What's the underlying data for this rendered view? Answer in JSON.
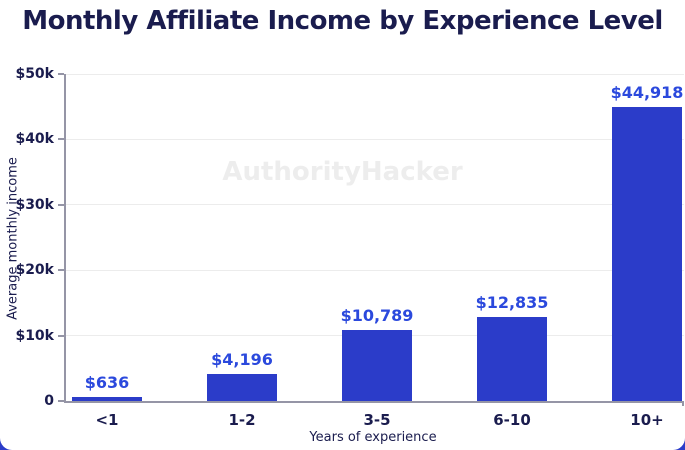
{
  "title": "Monthly Affiliate Income by Experience Level",
  "watermark": "AuthorityHacker",
  "chart_data": {
    "type": "bar",
    "title": "Monthly Affiliate Income by Experience Level",
    "categories": [
      "<1",
      "1-2",
      "3-5",
      "6-10",
      "10+"
    ],
    "values": [
      636,
      4196,
      10789,
      12835,
      44918
    ],
    "value_labels": [
      "$636",
      "$4,196",
      "$10,789",
      "$12,835",
      "$44,918"
    ],
    "xlabel": "Years of experience",
    "ylabel": "Average monthly income",
    "ylim": [
      0,
      50000
    ],
    "yticks": [
      0,
      10000,
      20000,
      30000,
      40000,
      50000
    ],
    "ytick_labels": [
      "0",
      "$10k",
      "$20k",
      "$30k",
      "$40k",
      "$50k"
    ],
    "grid": true,
    "legend": false,
    "watermark": "AuthorityHacker"
  },
  "colors": {
    "bar": "#2b3cc9",
    "value_label": "#2b49dd",
    "text_dark": "#1a1c4e",
    "gridline": "#ececec",
    "axis": "#9595a6",
    "watermark": "#ededed",
    "background": "#ffffff",
    "corner_peek": "#2b3cc9"
  }
}
